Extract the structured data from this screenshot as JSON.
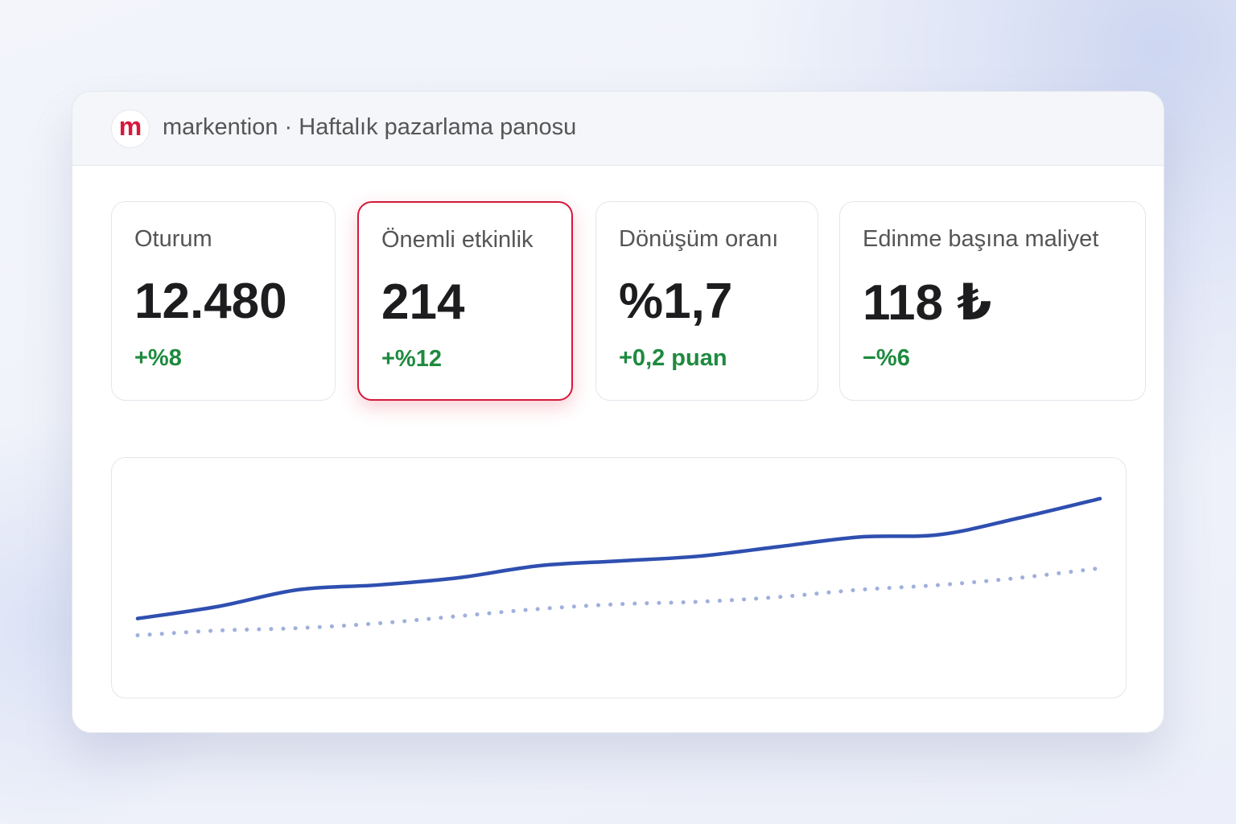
{
  "header": {
    "brand": "markention",
    "separator": "·",
    "title": "Haftalık pazarlama panosu"
  },
  "kpis": [
    {
      "label": "Oturum",
      "value": "12.480",
      "change": "+%8"
    },
    {
      "label": "Önemli etkinlik",
      "value": "214",
      "change": "+%12",
      "highlighted": true
    },
    {
      "label": "Dönüşüm oranı",
      "value": "%1,7",
      "change": "+0,2 puan"
    },
    {
      "label": "Edinme başına maliyet",
      "value": "118 ₺",
      "change": "−%6"
    }
  ],
  "chart_data": {
    "type": "line",
    "ylim": [
      0,
      100
    ],
    "series": [
      {
        "color": "#2f4fb0",
        "dashed": false,
        "values": [
          33,
          38,
          45,
          47,
          50,
          55,
          57,
          59,
          63,
          67,
          68,
          75,
          83
        ]
      },
      {
        "color": "#9fb0dc",
        "dashed": true,
        "values": [
          26,
          28,
          29,
          31,
          34,
          37,
          39,
          40,
          42,
          45,
          47,
          50,
          54
        ]
      }
    ]
  }
}
